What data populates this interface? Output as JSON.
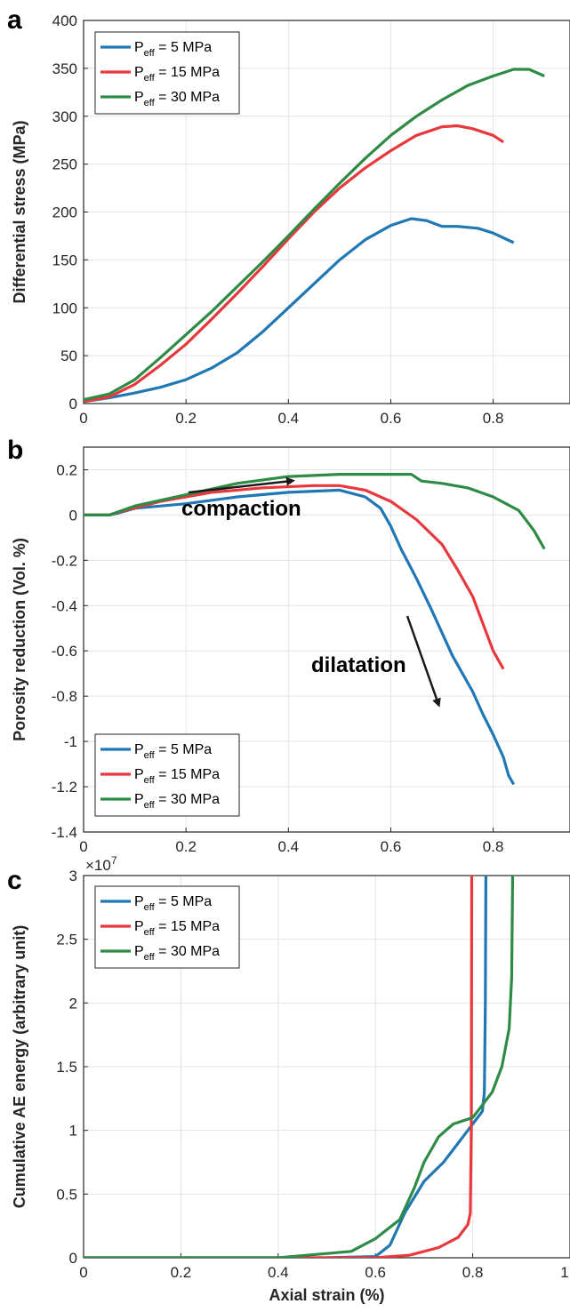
{
  "colors": {
    "blue": "#1f77b4",
    "red": "#e8383d",
    "green": "#2e8b46",
    "grid": "#e3e3e3",
    "axis": "#262626"
  },
  "legend_entries": [
    {
      "prefix": "P",
      "sub": "eff",
      "suffix": " = 5 MPa",
      "color": "#1f77b4"
    },
    {
      "prefix": "P",
      "sub": "eff",
      "suffix": " = 15 MPa",
      "color": "#e8383d"
    },
    {
      "prefix": "P",
      "sub": "eff",
      "suffix": " = 30 MPa",
      "color": "#2e8b46"
    }
  ],
  "chart_data": [
    {
      "panel": "a",
      "type": "line",
      "xlabel": "",
      "ylabel": "Differential stress (MPa)",
      "xlim": [
        0,
        0.95
      ],
      "ylim": [
        0,
        400
      ],
      "x_ticks": [
        "0",
        "0.2",
        "0.4",
        "0.6",
        "0.8"
      ],
      "y_ticks": [
        "0",
        "50",
        "100",
        "150",
        "200",
        "250",
        "300",
        "350",
        "400"
      ],
      "grid": true,
      "legend": "top-left",
      "series": [
        {
          "name": "Peff = 5 MPa",
          "color": "#1f77b4",
          "points": [
            [
              0,
              2
            ],
            [
              0.05,
              6
            ],
            [
              0.1,
              11
            ],
            [
              0.15,
              17
            ],
            [
              0.2,
              25
            ],
            [
              0.25,
              37
            ],
            [
              0.3,
              53
            ],
            [
              0.35,
              75
            ],
            [
              0.4,
              100
            ],
            [
              0.45,
              125
            ],
            [
              0.5,
              150
            ],
            [
              0.55,
              171
            ],
            [
              0.6,
              186
            ],
            [
              0.64,
              193
            ],
            [
              0.67,
              191
            ],
            [
              0.7,
              185
            ],
            [
              0.73,
              185
            ],
            [
              0.77,
              183
            ],
            [
              0.8,
              178
            ],
            [
              0.84,
              168
            ]
          ]
        },
        {
          "name": "Peff = 15 MPa",
          "color": "#e8383d",
          "points": [
            [
              0,
              2
            ],
            [
              0.05,
              7
            ],
            [
              0.1,
              20
            ],
            [
              0.15,
              40
            ],
            [
              0.2,
              62
            ],
            [
              0.25,
              88
            ],
            [
              0.3,
              115
            ],
            [
              0.35,
              143
            ],
            [
              0.4,
              172
            ],
            [
              0.45,
              200
            ],
            [
              0.5,
              225
            ],
            [
              0.55,
              246
            ],
            [
              0.6,
              264
            ],
            [
              0.65,
              280
            ],
            [
              0.7,
              289
            ],
            [
              0.73,
              290
            ],
            [
              0.76,
              287
            ],
            [
              0.8,
              280
            ],
            [
              0.82,
              273
            ]
          ]
        },
        {
          "name": "Peff = 30 MPa",
          "color": "#2e8b46",
          "points": [
            [
              0,
              4
            ],
            [
              0.05,
              10
            ],
            [
              0.1,
              25
            ],
            [
              0.15,
              48
            ],
            [
              0.2,
              72
            ],
            [
              0.25,
              96
            ],
            [
              0.3,
              122
            ],
            [
              0.35,
              148
            ],
            [
              0.4,
              175
            ],
            [
              0.45,
              203
            ],
            [
              0.5,
              230
            ],
            [
              0.55,
              256
            ],
            [
              0.6,
              280
            ],
            [
              0.65,
              300
            ],
            [
              0.7,
              317
            ],
            [
              0.75,
              332
            ],
            [
              0.8,
              342
            ],
            [
              0.84,
              349
            ],
            [
              0.87,
              349
            ],
            [
              0.9,
              342
            ]
          ]
        }
      ]
    },
    {
      "panel": "b",
      "type": "line",
      "xlabel": "",
      "ylabel": "Porosity reduction (Vol. %)",
      "xlim": [
        0,
        0.95
      ],
      "ylim": [
        -1.4,
        0.3
      ],
      "x_ticks": [
        "0",
        "0.2",
        "0.4",
        "0.6",
        "0.8"
      ],
      "y_ticks": [
        "0.2",
        "0",
        "-0.2",
        "-0.4",
        "-0.6",
        "-0.8",
        "-1",
        "-1.2",
        "-1.4"
      ],
      "grid": true,
      "legend": "bottom-left",
      "annotations": [
        "compaction",
        "dilatation"
      ],
      "series": [
        {
          "name": "Peff = 5 MPa",
          "color": "#1f77b4",
          "points": [
            [
              0,
              0
            ],
            [
              0.05,
              0
            ],
            [
              0.07,
              0.01
            ],
            [
              0.1,
              0.03
            ],
            [
              0.2,
              0.05
            ],
            [
              0.3,
              0.08
            ],
            [
              0.4,
              0.1
            ],
            [
              0.5,
              0.11
            ],
            [
              0.55,
              0.08
            ],
            [
              0.58,
              0.03
            ],
            [
              0.6,
              -0.05
            ],
            [
              0.62,
              -0.15
            ],
            [
              0.65,
              -0.28
            ],
            [
              0.68,
              -0.42
            ],
            [
              0.7,
              -0.52
            ],
            [
              0.72,
              -0.62
            ],
            [
              0.74,
              -0.7
            ],
            [
              0.76,
              -0.78
            ],
            [
              0.78,
              -0.88
            ],
            [
              0.8,
              -0.97
            ],
            [
              0.82,
              -1.07
            ],
            [
              0.83,
              -1.15
            ],
            [
              0.84,
              -1.19
            ]
          ]
        },
        {
          "name": "Peff = 15 MPa",
          "color": "#e8383d",
          "points": [
            [
              0,
              0
            ],
            [
              0.05,
              0
            ],
            [
              0.08,
              0.02
            ],
            [
              0.15,
              0.06
            ],
            [
              0.25,
              0.1
            ],
            [
              0.35,
              0.12
            ],
            [
              0.45,
              0.13
            ],
            [
              0.5,
              0.13
            ],
            [
              0.55,
              0.11
            ],
            [
              0.6,
              0.06
            ],
            [
              0.65,
              -0.02
            ],
            [
              0.7,
              -0.13
            ],
            [
              0.73,
              -0.24
            ],
            [
              0.76,
              -0.36
            ],
            [
              0.78,
              -0.48
            ],
            [
              0.8,
              -0.6
            ],
            [
              0.82,
              -0.68
            ]
          ]
        },
        {
          "name": "Peff = 30 MPa",
          "color": "#2e8b46",
          "points": [
            [
              0,
              0
            ],
            [
              0.05,
              0
            ],
            [
              0.1,
              0.04
            ],
            [
              0.2,
              0.09
            ],
            [
              0.3,
              0.14
            ],
            [
              0.4,
              0.17
            ],
            [
              0.5,
              0.18
            ],
            [
              0.6,
              0.18
            ],
            [
              0.64,
              0.18
            ],
            [
              0.66,
              0.15
            ],
            [
              0.7,
              0.14
            ],
            [
              0.75,
              0.12
            ],
            [
              0.8,
              0.08
            ],
            [
              0.85,
              0.02
            ],
            [
              0.88,
              -0.07
            ],
            [
              0.9,
              -0.15
            ]
          ]
        }
      ]
    },
    {
      "panel": "c",
      "type": "line",
      "xlabel": "Axial strain (%)",
      "ylabel": "Cumulative AE energy (arbitrary unit)",
      "y_multiplier_label": "×10",
      "y_multiplier_exp": "7",
      "xlim": [
        0,
        1
      ],
      "ylim": [
        0,
        3
      ],
      "x_ticks": [
        "0",
        "0.2",
        "0.4",
        "0.6",
        "0.8",
        "1"
      ],
      "y_ticks": [
        "0",
        "0.5",
        "1",
        "1.5",
        "2",
        "2.5",
        "3"
      ],
      "grid": true,
      "legend": "top-left",
      "series": [
        {
          "name": "Peff = 5 MPa",
          "color": "#1f77b4",
          "points": [
            [
              0,
              0
            ],
            [
              0.5,
              0
            ],
            [
              0.6,
              0.01
            ],
            [
              0.63,
              0.1
            ],
            [
              0.66,
              0.35
            ],
            [
              0.7,
              0.6
            ],
            [
              0.74,
              0.75
            ],
            [
              0.78,
              0.95
            ],
            [
              0.8,
              1.05
            ],
            [
              0.82,
              1.15
            ],
            [
              0.824,
              1.3
            ],
            [
              0.826,
              2.0
            ],
            [
              0.827,
              3.0
            ]
          ]
        },
        {
          "name": "Peff = 15 MPa",
          "color": "#e8383d",
          "points": [
            [
              0,
              0
            ],
            [
              0.6,
              0
            ],
            [
              0.67,
              0.02
            ],
            [
              0.73,
              0.08
            ],
            [
              0.77,
              0.16
            ],
            [
              0.79,
              0.26
            ],
            [
              0.795,
              0.35
            ],
            [
              0.797,
              1.0
            ],
            [
              0.798,
              3.0
            ]
          ]
        },
        {
          "name": "Peff = 30 MPa",
          "color": "#2e8b46",
          "points": [
            [
              0,
              0
            ],
            [
              0.4,
              0
            ],
            [
              0.55,
              0.05
            ],
            [
              0.6,
              0.15
            ],
            [
              0.65,
              0.3
            ],
            [
              0.68,
              0.55
            ],
            [
              0.7,
              0.75
            ],
            [
              0.73,
              0.95
            ],
            [
              0.76,
              1.05
            ],
            [
              0.8,
              1.1
            ],
            [
              0.84,
              1.3
            ],
            [
              0.86,
              1.5
            ],
            [
              0.875,
              1.8
            ],
            [
              0.88,
              2.2
            ],
            [
              0.882,
              3.0
            ]
          ]
        }
      ]
    }
  ]
}
